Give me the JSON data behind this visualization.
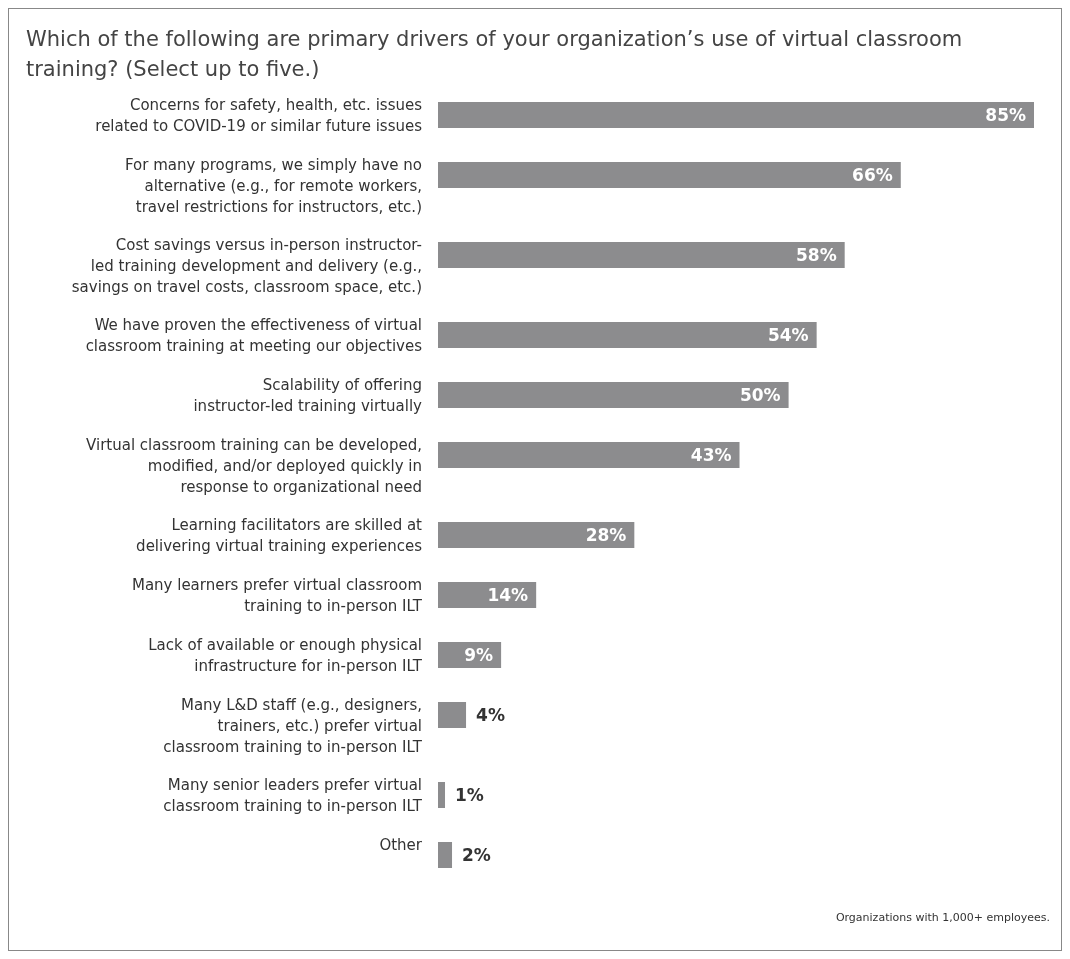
{
  "chart_data": {
    "type": "bar",
    "orientation": "horizontal",
    "title": "Which of the following are primary drivers of your organization’s use of virtual classroom training? (Select up to five.)",
    "categories": [
      "Concerns for safety, health, etc. issues\nrelated to COVID-19 or similar future issues",
      "For many programs, we simply have no\nalternative (e.g., for remote workers,\ntravel restrictions for instructors, etc.)",
      "Cost savings versus in-person instructor-\nled training development and delivery (e.g.,\nsavings on travel costs, classroom space, etc.)",
      "We have proven the effectiveness of virtual\nclassroom training at meeting our objectives",
      "Scalability of offering\ninstructor-led training virtually",
      "Virtual classroom training can be developed,\nmodified, and/or deployed quickly in\nresponse to organizational need",
      "Learning facilitators are skilled at\ndelivering virtual training experiences",
      "Many learners prefer virtual classroom\ntraining to in-person ILT",
      "Lack of available or enough physical\ninfrastructure for in-person ILT",
      "Many L&D staff (e.g., designers,\ntrainers, etc.) prefer virtual\nclassroom training to in-person ILT",
      "Many senior leaders prefer virtual\nclassroom training to in-person ILT",
      "Other"
    ],
    "values": [
      85,
      66,
      58,
      54,
      50,
      43,
      28,
      14,
      9,
      4,
      1,
      2
    ],
    "value_labels": [
      "85%",
      "66%",
      "58%",
      "54%",
      "50%",
      "43%",
      "28%",
      "14%",
      "9%",
      "4%",
      "1%",
      "2%"
    ],
    "color": "#8c8c8e",
    "annotations": [
      "Organizations with 1,000+ employees."
    ]
  }
}
